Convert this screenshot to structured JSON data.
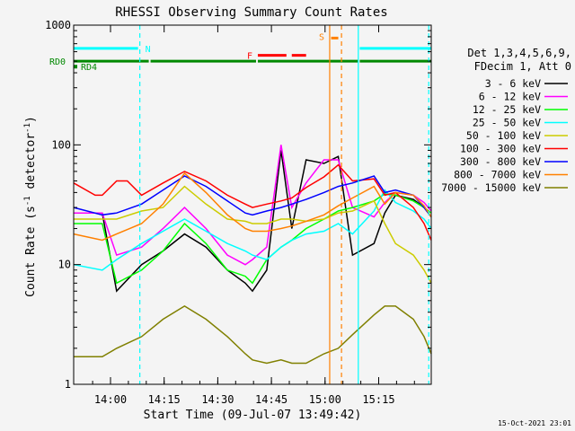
{
  "chart_data": {
    "type": "line",
    "title": "RHESSI Observing Summary Count Rates",
    "xlabel": "Start Time (09-Jul-07 13:49:42)",
    "ylabel_main": "Count Rate (s",
    "ylabel_sup": "-1",
    "ylabel_mid": " detector",
    "ylabel_end": ")",
    "x_range_minutes": [
      0,
      100
    ],
    "x_ticks": [
      {
        "label": "14:00",
        "minute": 10.3
      },
      {
        "label": "14:15",
        "minute": 25.3
      },
      {
        "label": "14:30",
        "minute": 40.3
      },
      {
        "label": "14:45",
        "minute": 55.3
      },
      {
        "label": "15:00",
        "minute": 70.3
      },
      {
        "label": "15:15",
        "minute": 85.3
      }
    ],
    "y_scale": "log",
    "y_range": [
      1,
      1000
    ],
    "y_tick_labels": [
      {
        "label": "1",
        "value": 1
      },
      {
        "label": "10",
        "value": 10
      },
      {
        "label": "100",
        "value": 100
      },
      {
        "label": "1000",
        "value": 1000
      }
    ],
    "legend": {
      "header_line1": "Det 1,3,4,5,6,9,",
      "header_line2": "FDecim 1, Att 0",
      "placement": "right"
    },
    "series": [
      {
        "name": "3 - 6 keV",
        "color": "#000000",
        "points": [
          [
            0,
            27
          ],
          [
            8,
            27
          ],
          [
            12,
            6
          ],
          [
            19,
            10
          ],
          [
            25,
            13
          ],
          [
            31,
            18
          ],
          [
            37,
            14
          ],
          [
            43,
            9
          ],
          [
            48,
            7
          ],
          [
            50,
            6
          ],
          [
            54,
            9
          ],
          [
            58,
            90
          ],
          [
            61,
            20
          ],
          [
            65,
            75
          ],
          [
            70,
            70
          ],
          [
            74,
            80
          ],
          [
            78,
            12
          ],
          [
            84,
            15
          ],
          [
            87,
            27
          ],
          [
            90,
            38
          ],
          [
            95,
            35
          ],
          [
            98,
            30
          ],
          [
            100,
            25
          ]
        ]
      },
      {
        "name": "6 - 12 keV",
        "color": "#ff00ff",
        "points": [
          [
            0,
            27
          ],
          [
            8,
            27
          ],
          [
            12,
            12
          ],
          [
            19,
            14
          ],
          [
            25,
            20
          ],
          [
            31,
            30
          ],
          [
            37,
            20
          ],
          [
            43,
            12
          ],
          [
            48,
            10
          ],
          [
            50,
            11
          ],
          [
            54,
            14
          ],
          [
            58,
            100
          ],
          [
            61,
            30
          ],
          [
            65,
            48
          ],
          [
            70,
            75
          ],
          [
            74,
            75
          ],
          [
            78,
            30
          ],
          [
            84,
            25
          ],
          [
            87,
            33
          ],
          [
            90,
            40
          ],
          [
            95,
            38
          ],
          [
            98,
            33
          ],
          [
            100,
            28
          ]
        ]
      },
      {
        "name": "12 - 25 keV",
        "color": "#00ff00",
        "points": [
          [
            0,
            22
          ],
          [
            8,
            22
          ],
          [
            12,
            7
          ],
          [
            19,
            9
          ],
          [
            25,
            13
          ],
          [
            31,
            22
          ],
          [
            37,
            15
          ],
          [
            43,
            9
          ],
          [
            48,
            8
          ],
          [
            50,
            7
          ],
          [
            54,
            11
          ],
          [
            58,
            14
          ],
          [
            61,
            16
          ],
          [
            65,
            20
          ],
          [
            70,
            24
          ],
          [
            74,
            28
          ],
          [
            78,
            30
          ],
          [
            84,
            34
          ],
          [
            87,
            39
          ],
          [
            90,
            38
          ],
          [
            95,
            34
          ],
          [
            98,
            30
          ],
          [
            100,
            27
          ]
        ]
      },
      {
        "name": "25 - 50 keV",
        "color": "#00ffff",
        "points": [
          [
            0,
            10
          ],
          [
            8,
            9
          ],
          [
            12,
            11
          ],
          [
            19,
            15
          ],
          [
            25,
            19
          ],
          [
            31,
            24
          ],
          [
            37,
            19
          ],
          [
            43,
            15
          ],
          [
            48,
            13
          ],
          [
            50,
            12
          ],
          [
            54,
            11
          ],
          [
            58,
            14
          ],
          [
            61,
            16
          ],
          [
            65,
            18
          ],
          [
            70,
            19
          ],
          [
            74,
            22
          ],
          [
            78,
            18
          ],
          [
            84,
            28
          ],
          [
            87,
            42
          ],
          [
            90,
            33
          ],
          [
            95,
            28
          ],
          [
            98,
            24
          ],
          [
            100,
            20
          ]
        ]
      },
      {
        "name": "50 - 100 keV",
        "color": "#cccc00",
        "points": [
          [
            0,
            24
          ],
          [
            8,
            24
          ],
          [
            12,
            24
          ],
          [
            19,
            28
          ],
          [
            25,
            30
          ],
          [
            31,
            45
          ],
          [
            37,
            32
          ],
          [
            43,
            24
          ],
          [
            48,
            23
          ],
          [
            50,
            22
          ],
          [
            54,
            22
          ],
          [
            58,
            24
          ],
          [
            61,
            24
          ],
          [
            65,
            23
          ],
          [
            70,
            24
          ],
          [
            74,
            27
          ],
          [
            78,
            28
          ],
          [
            84,
            34
          ],
          [
            87,
            22
          ],
          [
            90,
            15
          ],
          [
            95,
            12
          ],
          [
            98,
            9
          ],
          [
            100,
            7
          ]
        ]
      },
      {
        "name": "100 - 300 keV",
        "color": "#ff0000",
        "points": [
          [
            0,
            48
          ],
          [
            6,
            38
          ],
          [
            8,
            38
          ],
          [
            12,
            50
          ],
          [
            15,
            50
          ],
          [
            19,
            38
          ],
          [
            25,
            48
          ],
          [
            31,
            60
          ],
          [
            37,
            50
          ],
          [
            43,
            38
          ],
          [
            48,
            32
          ],
          [
            50,
            30
          ],
          [
            54,
            32
          ],
          [
            58,
            34
          ],
          [
            61,
            36
          ],
          [
            65,
            44
          ],
          [
            70,
            54
          ],
          [
            74,
            68
          ],
          [
            78,
            50
          ],
          [
            84,
            52
          ],
          [
            87,
            38
          ],
          [
            90,
            40
          ],
          [
            95,
            30
          ],
          [
            98,
            22
          ],
          [
            100,
            16
          ]
        ]
      },
      {
        "name": "300 - 800 keV",
        "color": "#0000ff",
        "points": [
          [
            0,
            30
          ],
          [
            8,
            26
          ],
          [
            12,
            27
          ],
          [
            19,
            32
          ],
          [
            25,
            42
          ],
          [
            31,
            55
          ],
          [
            37,
            45
          ],
          [
            43,
            34
          ],
          [
            48,
            27
          ],
          [
            50,
            26
          ],
          [
            54,
            28
          ],
          [
            58,
            30
          ],
          [
            61,
            32
          ],
          [
            65,
            35
          ],
          [
            70,
            40
          ],
          [
            74,
            45
          ],
          [
            78,
            48
          ],
          [
            84,
            55
          ],
          [
            87,
            40
          ],
          [
            90,
            42
          ],
          [
            95,
            38
          ],
          [
            98,
            30
          ],
          [
            100,
            25
          ]
        ]
      },
      {
        "name": "800 - 7000 keV",
        "color": "#ff8000",
        "points": [
          [
            0,
            18
          ],
          [
            8,
            16
          ],
          [
            12,
            18
          ],
          [
            19,
            22
          ],
          [
            25,
            32
          ],
          [
            31,
            58
          ],
          [
            37,
            40
          ],
          [
            43,
            26
          ],
          [
            48,
            20
          ],
          [
            50,
            19
          ],
          [
            54,
            19
          ],
          [
            58,
            20
          ],
          [
            61,
            21
          ],
          [
            65,
            23
          ],
          [
            70,
            26
          ],
          [
            74,
            31
          ],
          [
            78,
            36
          ],
          [
            84,
            45
          ],
          [
            87,
            32
          ],
          [
            90,
            40
          ],
          [
            95,
            38
          ],
          [
            98,
            31
          ],
          [
            100,
            25
          ]
        ]
      },
      {
        "name": "7000 - 15000 keV",
        "color": "#808000",
        "points": [
          [
            0,
            1.7
          ],
          [
            8,
            1.7
          ],
          [
            12,
            2
          ],
          [
            19,
            2.5
          ],
          [
            25,
            3.5
          ],
          [
            31,
            4.5
          ],
          [
            37,
            3.5
          ],
          [
            43,
            2.5
          ],
          [
            48,
            1.8
          ],
          [
            50,
            1.6
          ],
          [
            54,
            1.5
          ],
          [
            58,
            1.6
          ],
          [
            61,
            1.5
          ],
          [
            65,
            1.5
          ],
          [
            70,
            1.8
          ],
          [
            74,
            2
          ],
          [
            78,
            2.6
          ],
          [
            84,
            3.8
          ],
          [
            87,
            4.5
          ],
          [
            90,
            4.5
          ],
          [
            95,
            3.5
          ],
          [
            98,
            2.5
          ],
          [
            100,
            1.8
          ]
        ]
      }
    ],
    "flags": [
      {
        "label": "N",
        "color": "#00ffff",
        "segments": [
          [
            0,
            18
          ],
          [
            80,
            100
          ]
        ],
        "level": 640
      },
      {
        "label": "RD0",
        "color": "#008800",
        "segments": [
          [
            0,
            21
          ],
          [
            21.5,
            51
          ],
          [
            51.5,
            79.5
          ],
          [
            80,
            100
          ]
        ],
        "level": 500
      },
      {
        "label": "RD4",
        "color": "#008800",
        "segments": [],
        "level": 450
      },
      {
        "label": "F",
        "color": "#ff0000",
        "segments": [
          [
            51.5,
            59.5
          ],
          [
            61,
            65
          ]
        ],
        "level": 560
      },
      {
        "label": "S",
        "color": "#ff8000",
        "segments": [
          [
            72,
            74
          ]
        ],
        "level": 780
      }
    ],
    "markers": [
      {
        "minute": 18.5,
        "color": "#00ffff",
        "style": "dashed"
      },
      {
        "minute": 71.6,
        "color": "#ff8000",
        "style": "solid"
      },
      {
        "minute": 74.9,
        "color": "#ff8000",
        "style": "dashed"
      },
      {
        "minute": 79.6,
        "color": "#00ffff",
        "style": "solid"
      },
      {
        "minute": 99.3,
        "color": "#00ffff",
        "style": "dashed"
      }
    ],
    "footer_date": "15-Oct-2021 23:01"
  }
}
